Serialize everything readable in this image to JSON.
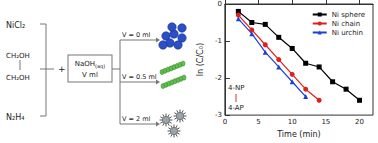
{
  "diagram": {
    "reactants": [
      "NiCl₂",
      "N₂H₄"
    ],
    "glycol": [
      "CH₂OH",
      "CH₂OH"
    ],
    "plus": "+",
    "reagent": {
      "name": "NaOH",
      "sub": "(aq)",
      "line2": "V ml"
    },
    "conditions": [
      "V = 0 ml",
      "V = 0.5 ml",
      "V = 2 ml"
    ]
  },
  "chart_data": {
    "type": "line",
    "x_label": "Time (min)",
    "y_label": "ln (C/C₀)",
    "xlim": [
      0,
      22
    ],
    "xticks": [
      0,
      5,
      10,
      15,
      20
    ],
    "ylim": [
      -3,
      0
    ],
    "yticks": [
      -3,
      -2,
      -1,
      0
    ],
    "legend": "upper right",
    "grid": false,
    "annotations": [
      "4-NP",
      "4-AP"
    ],
    "series": [
      {
        "name": "Ni sphere",
        "color": "#000000",
        "marker": "square",
        "x": [
          2,
          4,
          6,
          8,
          10,
          12,
          14,
          16,
          18,
          20
        ],
        "values": [
          -0.2,
          -0.5,
          -0.55,
          -0.9,
          -1.2,
          -1.6,
          -1.7,
          -2.1,
          -2.3,
          -2.6
        ]
      },
      {
        "name": "Ni chain",
        "color": "#e0201b",
        "marker": "circle",
        "x": [
          2,
          4,
          6,
          8,
          10,
          12,
          14
        ],
        "values": [
          -0.3,
          -0.7,
          -1.1,
          -1.5,
          -1.9,
          -2.3,
          -2.6
        ]
      },
      {
        "name": "Ni urchin",
        "color": "#1f3fd8",
        "marker": "triangle",
        "x": [
          2,
          4,
          6,
          8,
          10,
          12
        ],
        "values": [
          -0.4,
          -0.8,
          -1.3,
          -1.7,
          -2.1,
          -2.5
        ]
      }
    ]
  }
}
